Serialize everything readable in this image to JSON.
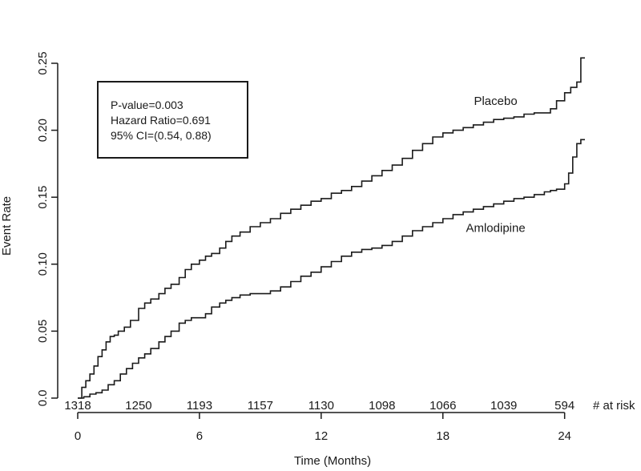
{
  "chart_data": {
    "type": "line",
    "title": "",
    "xlabel": "Time (Months)",
    "ylabel": "Event Rate",
    "xlim": [
      0,
      25
    ],
    "ylim": [
      0,
      0.25
    ],
    "x_ticks": [
      "0",
      "6",
      "12",
      "18",
      "24"
    ],
    "x_tick_values": [
      0,
      6,
      12,
      18,
      24
    ],
    "y_ticks": [
      "0.0",
      "0.05",
      "0.10",
      "0.15",
      "0.20",
      "0.25"
    ],
    "y_tick_values": [
      0,
      0.05,
      0.1,
      0.15,
      0.2,
      0.25
    ],
    "grid": false,
    "legend": "none",
    "annotation_lines": [
      "P-value=0.003",
      "Hazard Ratio=0.691",
      "95% CI=(0.54, 0.88)"
    ],
    "at_risk": {
      "label": "# at risk",
      "times": [
        0,
        3,
        6,
        9,
        12,
        15,
        18,
        21,
        24
      ],
      "values": [
        "1318",
        "1250",
        "1193",
        "1157",
        "1130",
        "1098",
        "1066",
        "1039",
        "594"
      ]
    },
    "series": [
      {
        "name": "Placebo",
        "x": [
          0,
          0.2,
          0.4,
          0.6,
          0.8,
          1.0,
          1.2,
          1.4,
          1.6,
          1.8,
          2.0,
          2.3,
          2.6,
          3.0,
          3.3,
          3.6,
          4.0,
          4.3,
          4.6,
          5.0,
          5.3,
          5.6,
          6.0,
          6.3,
          6.6,
          7.0,
          7.3,
          7.6,
          8.0,
          8.5,
          9.0,
          9.5,
          10.0,
          10.5,
          11.0,
          11.5,
          12.0,
          12.5,
          13.0,
          13.5,
          14.0,
          14.5,
          15.0,
          15.5,
          16.0,
          16.5,
          17.0,
          17.5,
          18.0,
          18.5,
          19.0,
          19.5,
          20.0,
          20.5,
          21.0,
          21.5,
          22.0,
          22.5,
          23.0,
          23.3,
          23.6,
          24.0,
          24.3,
          24.6,
          24.8,
          25.0
        ],
        "y": [
          0,
          0.008,
          0.013,
          0.018,
          0.024,
          0.031,
          0.036,
          0.042,
          0.046,
          0.047,
          0.05,
          0.053,
          0.058,
          0.067,
          0.071,
          0.074,
          0.078,
          0.082,
          0.085,
          0.09,
          0.096,
          0.1,
          0.103,
          0.106,
          0.108,
          0.112,
          0.117,
          0.121,
          0.124,
          0.128,
          0.131,
          0.134,
          0.138,
          0.141,
          0.144,
          0.147,
          0.149,
          0.153,
          0.155,
          0.158,
          0.162,
          0.166,
          0.17,
          0.174,
          0.179,
          0.185,
          0.19,
          0.195,
          0.198,
          0.2,
          0.202,
          0.204,
          0.206,
          0.208,
          0.209,
          0.21,
          0.212,
          0.213,
          0.213,
          0.216,
          0.222,
          0.228,
          0.232,
          0.236,
          0.254,
          0.254
        ]
      },
      {
        "name": "Amlodipine",
        "x": [
          0,
          0.3,
          0.6,
          0.9,
          1.2,
          1.5,
          1.8,
          2.1,
          2.4,
          2.7,
          3.0,
          3.3,
          3.6,
          4.0,
          4.3,
          4.6,
          5.0,
          5.3,
          5.6,
          6.0,
          6.3,
          6.6,
          7.0,
          7.3,
          7.6,
          8.0,
          8.5,
          9.0,
          9.5,
          10.0,
          10.5,
          11.0,
          11.5,
          12.0,
          12.5,
          13.0,
          13.5,
          14.0,
          14.5,
          15.0,
          15.5,
          16.0,
          16.5,
          17.0,
          17.5,
          18.0,
          18.5,
          19.0,
          19.5,
          20.0,
          20.5,
          21.0,
          21.5,
          22.0,
          22.5,
          23.0,
          23.3,
          23.6,
          24.0,
          24.2,
          24.4,
          24.6,
          24.8,
          25.0
        ],
        "y": [
          0,
          0.001,
          0.003,
          0.004,
          0.006,
          0.01,
          0.013,
          0.018,
          0.022,
          0.026,
          0.03,
          0.033,
          0.037,
          0.042,
          0.046,
          0.05,
          0.056,
          0.058,
          0.06,
          0.06,
          0.063,
          0.068,
          0.071,
          0.073,
          0.075,
          0.077,
          0.078,
          0.078,
          0.08,
          0.083,
          0.087,
          0.091,
          0.094,
          0.098,
          0.102,
          0.106,
          0.109,
          0.111,
          0.112,
          0.114,
          0.117,
          0.121,
          0.125,
          0.128,
          0.131,
          0.134,
          0.137,
          0.139,
          0.141,
          0.143,
          0.145,
          0.147,
          0.149,
          0.15,
          0.152,
          0.154,
          0.155,
          0.156,
          0.16,
          0.168,
          0.18,
          0.19,
          0.193,
          0.193
        ]
      }
    ]
  }
}
